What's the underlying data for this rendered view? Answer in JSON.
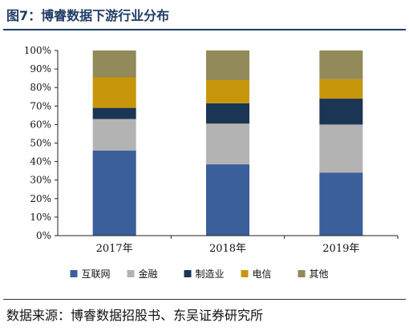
{
  "figure": {
    "title": "图7：博睿数据下游行业分布",
    "source": "数据来源：博睿数据招股书、东吴证券研究所"
  },
  "chart_data": {
    "type": "bar",
    "stacked": true,
    "categories": [
      "2017年",
      "2018年",
      "2019年"
    ],
    "series": [
      {
        "name": "互联网",
        "color": "#3a5f9a",
        "values": [
          46,
          38.5,
          34
        ]
      },
      {
        "name": "金融",
        "color": "#b3b3b3",
        "values": [
          17,
          22,
          26
        ]
      },
      {
        "name": "制造业",
        "color": "#1b3555",
        "values": [
          6,
          11,
          14
        ]
      },
      {
        "name": "电信",
        "color": "#c8960a",
        "values": [
          16.5,
          12.5,
          10.5
        ]
      },
      {
        "name": "其他",
        "color": "#928a58",
        "values": [
          14.5,
          16,
          15.5
        ]
      }
    ],
    "ylim": [
      0,
      100
    ],
    "yticks": [
      "0%",
      "10%",
      "20%",
      "30%",
      "40%",
      "50%",
      "60%",
      "70%",
      "80%",
      "90%",
      "100%"
    ],
    "xlabel": "",
    "ylabel": "",
    "grid": false,
    "legend_position": "bottom"
  }
}
